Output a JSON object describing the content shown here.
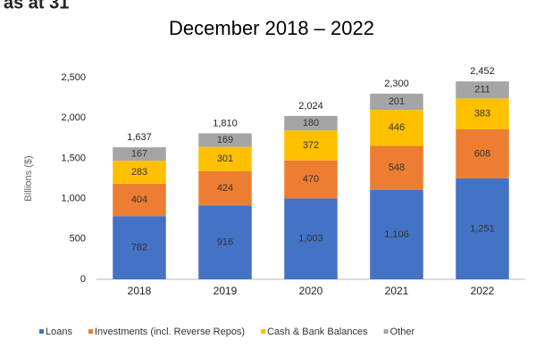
{
  "chart_data": {
    "type": "stacked-bar",
    "header": "as at 31",
    "title": "December 2018 – 2022",
    "y_label": "Billions ($)",
    "categories": [
      "2018",
      "2019",
      "2020",
      "2021",
      "2022"
    ],
    "series": [
      {
        "name": "Loans",
        "color": "#4472c4",
        "values": [
          782,
          916,
          1003,
          1106,
          1251
        ],
        "value_labels": [
          "782",
          "916",
          "1,003",
          "1,106",
          "1,251"
        ]
      },
      {
        "name": "Investments (incl. Reverse Repos)",
        "color": "#ed7d31",
        "values": [
          404,
          424,
          470,
          548,
          608
        ]
      },
      {
        "name": "Cash & Bank Balances",
        "color": "#ffc000",
        "values": [
          283,
          301,
          372,
          446,
          383
        ]
      },
      {
        "name": "Other",
        "color": "#a5a5a5",
        "values": [
          167,
          169,
          180,
          201,
          211
        ]
      }
    ],
    "totals": [
      1637,
      1810,
      2024,
      2300,
      2452
    ],
    "totals_labels": [
      "1,637",
      "1,810",
      "2,024",
      "2,300",
      "2,452"
    ],
    "ylim": [
      0,
      2500
    ],
    "yticks": [
      0,
      500,
      {
        "value": 1000,
        "label": "1,000"
      },
      {
        "value": 1500,
        "label": "1,500"
      },
      {
        "value": 2000,
        "label": "2,000"
      },
      {
        "value": 2500,
        "label": "2,500"
      }
    ],
    "legend": "bottom"
  }
}
